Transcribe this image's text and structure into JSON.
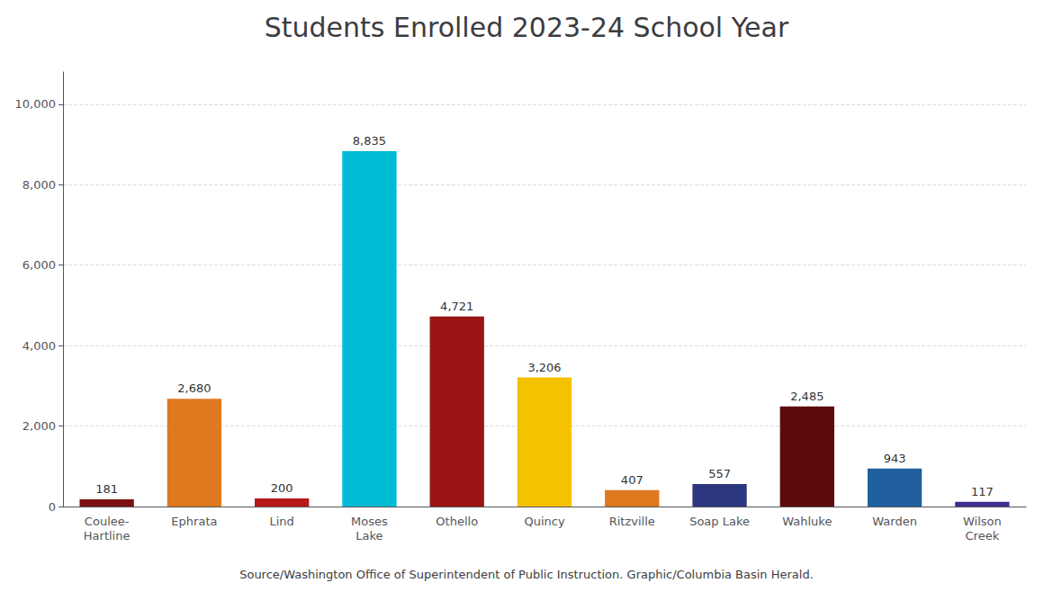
{
  "chart_data": {
    "type": "bar",
    "title": "Students Enrolled 2023-24 School Year",
    "categories": [
      "Coulee-\nHartline",
      "Ephrata",
      "Lind",
      "Moses\nLake",
      "Othello",
      "Quincy",
      "Ritzville",
      "Soap Lake",
      "Wahluke",
      "Warden",
      "Wilson\nCreek"
    ],
    "values": [
      181,
      2680,
      200,
      8835,
      4721,
      3206,
      407,
      557,
      2485,
      943,
      117
    ],
    "value_labels": [
      "181",
      "2,680",
      "200",
      "8,835",
      "4,721",
      "3,206",
      "407",
      "557",
      "2,485",
      "943",
      "117"
    ],
    "data_labels": true,
    "colors": [
      "#7B1111",
      "#E07820",
      "#B81818",
      "#00BCD4",
      "#9B1515",
      "#F5C200",
      "#E07820",
      "#2D3780",
      "#5C0A0A",
      "#2060A0",
      "#3B3090"
    ],
    "ylim": [
      0,
      10800
    ],
    "yticks": [
      0,
      {
        "value": 2000,
        "label": "2,000"
      },
      {
        "value": 4000,
        "label": "4,000"
      },
      {
        "value": 6000,
        "label": "6,000"
      },
      {
        "value": 8000,
        "label": "8,000"
      },
      {
        "value": 10000,
        "label": "10,000"
      }
    ],
    "grid": true,
    "annotations": [
      "Source/Washington Office of Superintendent of Public Instruction. Graphic/Columbia Basin Herald."
    ]
  }
}
